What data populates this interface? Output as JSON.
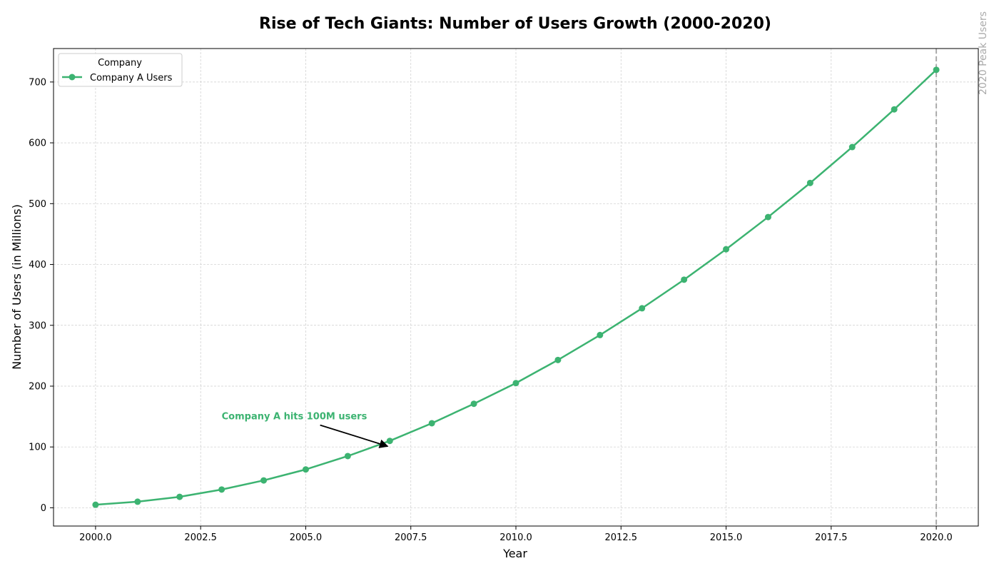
{
  "chart_data": {
    "type": "line",
    "title": "Rise of Tech Giants: Number of Users Growth (2000-2020)",
    "xlabel": "Year",
    "ylabel": "Number of Users (in Millions)",
    "xlim": [
      1999,
      2021
    ],
    "ylim": [
      -30,
      755
    ],
    "x_ticks": [
      2000.0,
      2002.5,
      2005.0,
      2007.5,
      2010.0,
      2012.5,
      2015.0,
      2017.5,
      2020.0
    ],
    "x_tick_labels": [
      "2000.0",
      "2002.5",
      "2005.0",
      "2007.5",
      "2010.0",
      "2012.5",
      "2015.0",
      "2017.5",
      "2020.0"
    ],
    "y_ticks": [
      0,
      100,
      200,
      300,
      400,
      500,
      600,
      700
    ],
    "y_tick_labels": [
      "0",
      "100",
      "200",
      "300",
      "400",
      "500",
      "600",
      "700"
    ],
    "grid": true,
    "legend": {
      "title": "Company",
      "placement": "top-left"
    },
    "x": [
      2000,
      2001,
      2002,
      2003,
      2004,
      2005,
      2006,
      2007,
      2008,
      2009,
      2010,
      2011,
      2012,
      2013,
      2014,
      2015,
      2016,
      2017,
      2018,
      2019,
      2020
    ],
    "series": [
      {
        "name": "Company A Users",
        "color": "#3cb371",
        "marker": "circle",
        "values": [
          5,
          10,
          18,
          30,
          45,
          63,
          85,
          110,
          139,
          171,
          205,
          243,
          284,
          328,
          375,
          425,
          478,
          534,
          593,
          655,
          720
        ]
      }
    ],
    "annotations": [
      {
        "text": "Company A hits 100M users",
        "color": "#3cb371",
        "text_x": 2003,
        "text_y": 150,
        "arrow_to_x": 2007,
        "arrow_to_y": 100
      }
    ],
    "vertical_line": {
      "x": 2020,
      "label": "2020 Peak Users",
      "color": "#aaaaaa",
      "style": "dashed"
    }
  }
}
